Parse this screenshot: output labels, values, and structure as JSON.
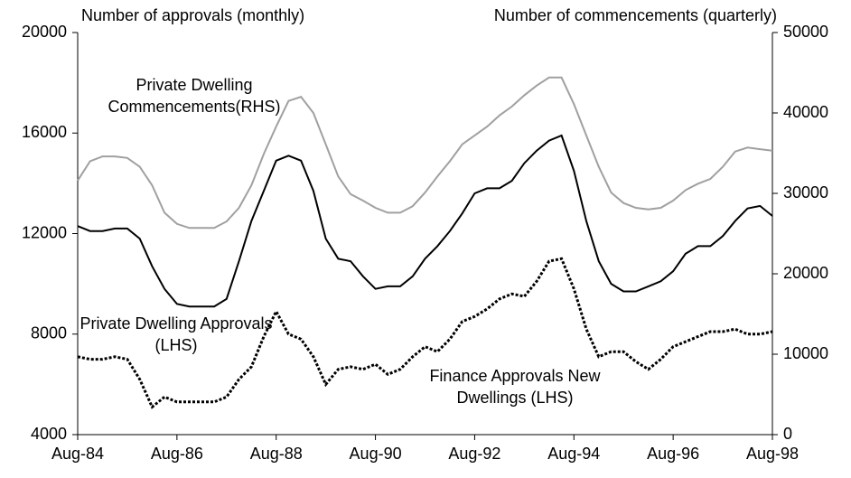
{
  "chart_data": {
    "type": "line",
    "y_label": "Number of approvals (monthly)",
    "y2_label": "Number of commencements (quarterly)",
    "x": [
      "Aug-84",
      "Nov-84",
      "Feb-85",
      "May-85",
      "Aug-85",
      "Nov-85",
      "Feb-86",
      "May-86",
      "Aug-86",
      "Nov-86",
      "Feb-87",
      "May-87",
      "Aug-87",
      "Nov-87",
      "Feb-88",
      "May-88",
      "Aug-88",
      "Nov-88",
      "Feb-89",
      "May-89",
      "Aug-89",
      "Nov-89",
      "Feb-90",
      "May-90",
      "Aug-90",
      "Nov-90",
      "Feb-91",
      "May-91",
      "Aug-91",
      "Nov-91",
      "Feb-92",
      "May-92",
      "Aug-92",
      "Nov-92",
      "Feb-93",
      "May-93",
      "Aug-93",
      "Nov-93",
      "Feb-94",
      "May-94",
      "Aug-94",
      "Nov-94",
      "Feb-95",
      "May-95",
      "Aug-95",
      "Nov-95",
      "Feb-96",
      "May-96",
      "Aug-96",
      "Nov-96",
      "Feb-97",
      "May-97",
      "Aug-97",
      "Nov-97",
      "Feb-98",
      "May-98",
      "Aug-98"
    ],
    "xticks": [
      "Aug-84",
      "Aug-86",
      "Aug-88",
      "Aug-90",
      "Aug-92",
      "Aug-94",
      "Aug-96",
      "Aug-98"
    ],
    "ylim": [
      4000,
      20000
    ],
    "yticks": [
      4000,
      8000,
      12000,
      16000,
      20000
    ],
    "y2lim": [
      0,
      50000
    ],
    "y2ticks": [
      0,
      10000,
      20000,
      30000,
      40000,
      50000
    ],
    "series": [
      {
        "name": "Private Dwelling Commencements(RHS)",
        "color": "#a0a0a0",
        "axis": "y2",
        "dash": false,
        "values": [
          31600,
          34000,
          34600,
          34600,
          34400,
          33300,
          31000,
          27600,
          26200,
          25700,
          25700,
          25700,
          26500,
          28200,
          31000,
          34900,
          38300,
          41500,
          42000,
          40000,
          36100,
          32100,
          29900,
          29100,
          28200,
          27600,
          27600,
          28400,
          30100,
          32100,
          34000,
          36100,
          37200,
          38300,
          39700,
          40800,
          42200,
          43400,
          44400,
          44400,
          41100,
          37200,
          33300,
          30100,
          28800,
          28200,
          28000,
          28200,
          29100,
          30400,
          31200,
          31800,
          33300,
          35200,
          35700,
          35500,
          35300
        ]
      },
      {
        "name": "Private Dwelling Approvals (LHS)",
        "color": "#000000",
        "axis": "y",
        "dash": false,
        "values": [
          12300,
          12100,
          12100,
          12200,
          12200,
          11800,
          10700,
          9800,
          9200,
          9100,
          9100,
          9100,
          9400,
          10900,
          12500,
          13700,
          14900,
          15100,
          14900,
          13700,
          11800,
          11000,
          10900,
          10300,
          9800,
          9900,
          9900,
          10300,
          11000,
          11500,
          12100,
          12800,
          13600,
          13800,
          13800,
          14100,
          14800,
          15300,
          15700,
          15900,
          14500,
          12500,
          10900,
          10000,
          9700,
          9700,
          9900,
          10100,
          10500,
          11200,
          11500,
          11500,
          11900,
          12500,
          13000,
          13100,
          12700
        ]
      },
      {
        "name": "Finance Approvals New Dwellings (LHS)",
        "color": "#000000",
        "axis": "y",
        "dash": true,
        "values": [
          7100,
          7000,
          7000,
          7100,
          7000,
          6200,
          5100,
          5500,
          5300,
          5300,
          5300,
          5300,
          5500,
          6200,
          6700,
          7900,
          8900,
          8000,
          7800,
          7100,
          6000,
          6600,
          6700,
          6600,
          6800,
          6400,
          6600,
          7100,
          7500,
          7300,
          7800,
          8500,
          8700,
          9000,
          9400,
          9600,
          9500,
          10100,
          10900,
          11000,
          9800,
          8200,
          7100,
          7300,
          7300,
          6900,
          6600,
          7000,
          7500,
          7700,
          7900,
          8100,
          8100,
          8200,
          8000,
          8000,
          8100
        ]
      }
    ]
  }
}
